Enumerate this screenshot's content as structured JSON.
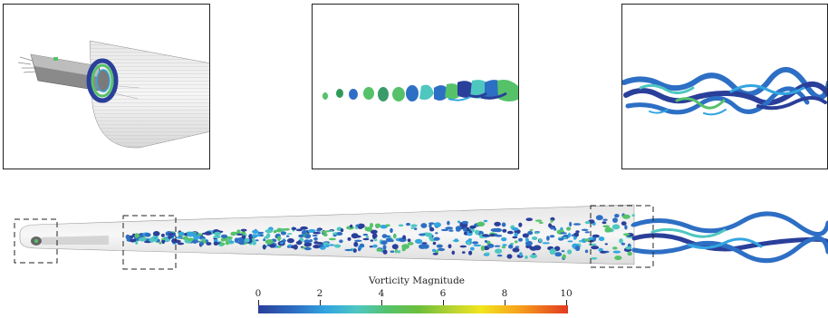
{
  "figure": {
    "panels": [
      {
        "name": "inlet-detail"
      },
      {
        "name": "transition-detail"
      },
      {
        "name": "wake-detail"
      }
    ],
    "colorbar": {
      "title": "Vorticity Magnitude",
      "ticks": [
        "0",
        "2",
        "4",
        "6",
        "8",
        "10"
      ],
      "range": [
        0,
        10
      ],
      "colors": [
        "#2a3f9a",
        "#33a5e0",
        "#55c26a",
        "#f2e51c",
        "#e23a20"
      ]
    }
  }
}
